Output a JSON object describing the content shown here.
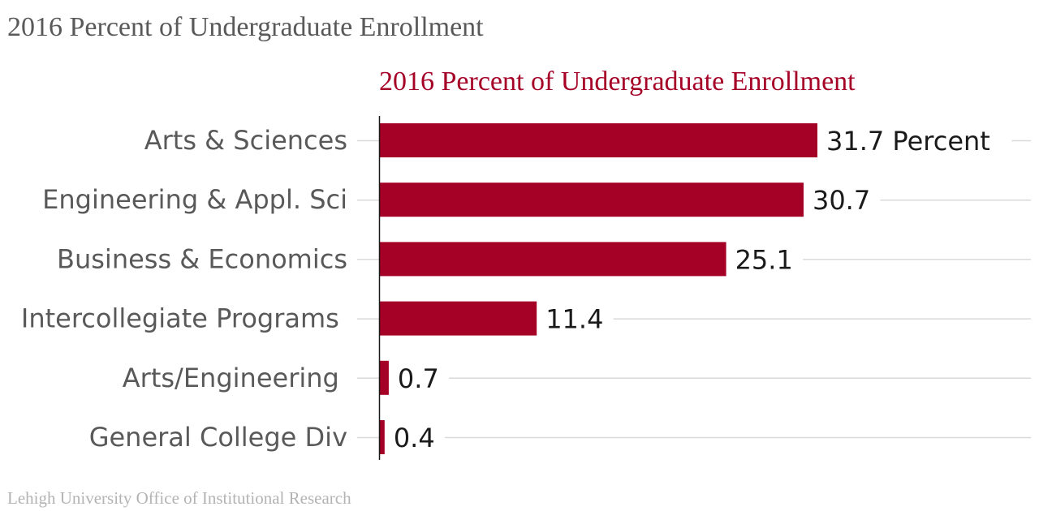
{
  "page": {
    "title": "2016 Percent of Undergraduate Enrollment",
    "source": "Lehigh University Office of Institutional Research"
  },
  "chart_data": {
    "type": "bar",
    "orientation": "horizontal",
    "title": "2016 Percent of Undergraduate Enrollment",
    "categories": [
      "Arts & Sciences",
      "Engineering & Appl. Sci",
      "Business & Economics",
      "Intercollegiate Programs ",
      "Arts/Engineering ",
      "General College Div"
    ],
    "values": [
      31.7,
      30.7,
      25.1,
      11.4,
      0.7,
      0.4
    ],
    "value_labels": [
      "31.7 Percent",
      "30.7",
      "25.1",
      "11.4",
      "0.7",
      "0.4"
    ],
    "xlim": [
      0,
      31.7
    ],
    "grid": true,
    "bar_color": "#a50026",
    "title_color": "#a50026"
  }
}
